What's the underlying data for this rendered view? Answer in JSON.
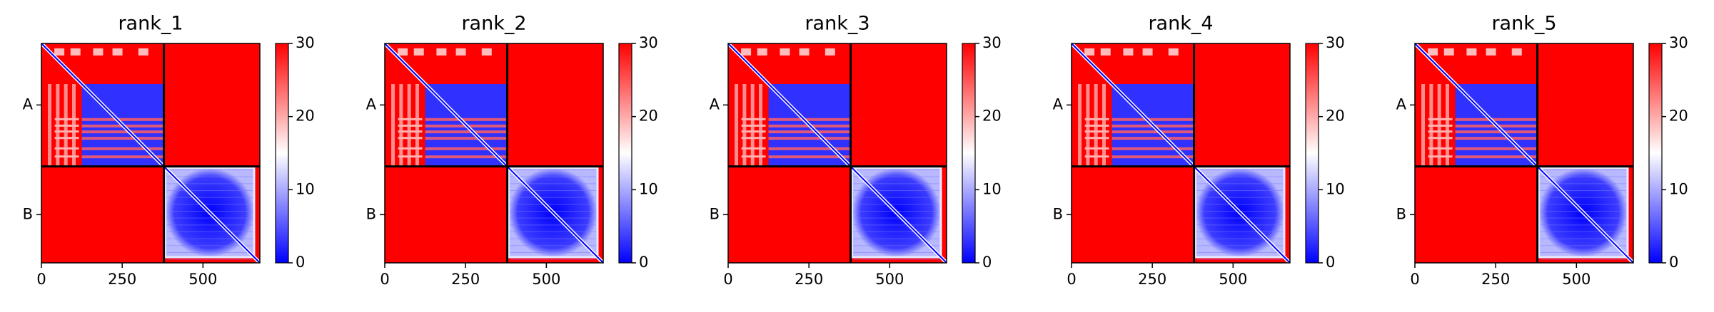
{
  "chart_data": [
    {
      "type": "heatmap",
      "title": "rank_1",
      "xlim": [
        0,
        676
      ],
      "xticks": [
        0,
        250,
        500
      ],
      "ylim": [
        0,
        676
      ],
      "y_inverted": true,
      "yticks": [
        {
          "value": 189.5,
          "label": "A"
        },
        {
          "value": 527.5,
          "label": "B"
        }
      ],
      "boundary": 379,
      "clim": [
        0,
        30
      ],
      "cticks": [
        0,
        10,
        20,
        30
      ],
      "colors": [
        "#0000ff",
        "#ffffff",
        "#ff0000"
      ]
    },
    {
      "type": "heatmap",
      "title": "rank_2",
      "xlim": [
        0,
        676
      ],
      "xticks": [
        0,
        250,
        500
      ],
      "ylim": [
        0,
        676
      ],
      "y_inverted": true,
      "yticks": [
        {
          "value": 189.5,
          "label": "A"
        },
        {
          "value": 527.5,
          "label": "B"
        }
      ],
      "boundary": 379,
      "clim": [
        0,
        30
      ],
      "cticks": [
        0,
        10,
        20,
        30
      ],
      "colors": [
        "#0000ff",
        "#ffffff",
        "#ff0000"
      ]
    },
    {
      "type": "heatmap",
      "title": "rank_3",
      "xlim": [
        0,
        676
      ],
      "xticks": [
        0,
        250,
        500
      ],
      "ylim": [
        0,
        676
      ],
      "y_inverted": true,
      "yticks": [
        {
          "value": 189.5,
          "label": "A"
        },
        {
          "value": 527.5,
          "label": "B"
        }
      ],
      "boundary": 379,
      "clim": [
        0,
        30
      ],
      "cticks": [
        0,
        10,
        20,
        30
      ],
      "colors": [
        "#0000ff",
        "#ffffff",
        "#ff0000"
      ]
    },
    {
      "type": "heatmap",
      "title": "rank_4",
      "xlim": [
        0,
        676
      ],
      "xticks": [
        0,
        250,
        500
      ],
      "ylim": [
        0,
        676
      ],
      "y_inverted": true,
      "yticks": [
        {
          "value": 189.5,
          "label": "A"
        },
        {
          "value": 527.5,
          "label": "B"
        }
      ],
      "boundary": 379,
      "clim": [
        0,
        30
      ],
      "cticks": [
        0,
        10,
        20,
        30
      ],
      "colors": [
        "#0000ff",
        "#ffffff",
        "#ff0000"
      ]
    },
    {
      "type": "heatmap",
      "title": "rank_5",
      "xlim": [
        0,
        676
      ],
      "xticks": [
        0,
        250,
        500
      ],
      "ylim": [
        0,
        676
      ],
      "y_inverted": true,
      "yticks": [
        {
          "value": 189.5,
          "label": "A"
        },
        {
          "value": 527.5,
          "label": "B"
        }
      ],
      "boundary": 379,
      "clim": [
        0,
        30
      ],
      "cticks": [
        0,
        10,
        20,
        30
      ],
      "colors": [
        "#0000ff",
        "#ffffff",
        "#ff0000"
      ]
    }
  ]
}
